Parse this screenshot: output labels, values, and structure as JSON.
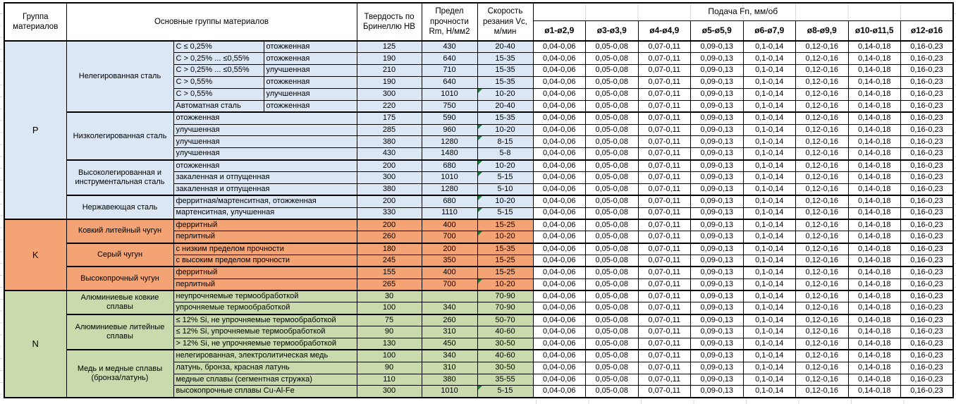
{
  "table": {
    "header": {
      "col_group": "Группа материалов",
      "col_main_groups": "Основные группы материалов",
      "col_hardness": "Твердость по Бринеллю НВ",
      "col_strength": "Предел прочности Rm, Н/мм2",
      "col_speed": "Скорость резания Vc, м/мин",
      "feed_title": "Подача Fn, мм/об",
      "feed_columns": [
        "ø1-ø2,9",
        "ø3-ø3,9",
        "ø4-ø4,9",
        "ø5-ø5,9",
        "ø6-ø7,9",
        "ø8-ø9,9",
        "ø10-ø11,5",
        "ø12-ø16"
      ]
    },
    "feed_values_per_row_identical": [
      "0,04-0,06",
      "0,05-0,08",
      "0,07-0,11",
      "0,09-0,13",
      "0,1-0,14",
      "0,12-0,16",
      "0,14-0,18",
      "0,16-0,23"
    ],
    "note_marker_color": "#1E7B3C",
    "groups": [
      {
        "code": "P",
        "color": "#DBE7F4",
        "subgroups": [
          {
            "name": "Нелегированная сталь",
            "rows": [
              {
                "c1": "C ≤ 0,25%",
                "c2": "отожженная",
                "hb": "125",
                "rm": "430",
                "vc": "20-40",
                "note": false
              },
              {
                "c1": "C > 0,25% ... ≤0,55%",
                "c2": "отожженная",
                "hb": "190",
                "rm": "640",
                "vc": "15-35",
                "note": false
              },
              {
                "c1": "C > 0,25% ... ≤0,55%",
                "c2": "улучшенная",
                "hb": "210",
                "rm": "710",
                "vc": "15-35",
                "note": false
              },
              {
                "c1": "C > 0,55%",
                "c2": "отожженная",
                "hb": "190",
                "rm": "640",
                "vc": "15-35",
                "note": false
              },
              {
                "c1": "C > 0,55%",
                "c2": "улучшенная",
                "hb": "300",
                "rm": "1010",
                "vc": "10-20",
                "note": true
              },
              {
                "c1": "Автоматная сталь",
                "c2": "отожженная",
                "hb": "220",
                "rm": "750",
                "vc": "20-40",
                "note": false
              }
            ]
          },
          {
            "name": "Низколегированная сталь",
            "rows": [
              {
                "desc": "отожженная",
                "hb": "175",
                "rm": "590",
                "vc": "15-35",
                "note": false
              },
              {
                "desc": "улучшенная",
                "hb": "285",
                "rm": "960",
                "vc": "10-20",
                "note": true
              },
              {
                "desc": "улучшенная",
                "hb": "380",
                "rm": "1280",
                "vc": "8-15",
                "note": true
              },
              {
                "desc": "улучшенная",
                "hb": "430",
                "rm": "1480",
                "vc": "5-8",
                "note": false
              }
            ]
          },
          {
            "name": "Высоколегированная и инструментальная сталь",
            "rows": [
              {
                "desc": "отожженная",
                "hb": "200",
                "rm": "680",
                "vc": "10-20",
                "note": true
              },
              {
                "desc": "закаленная и отпущенная",
                "hb": "300",
                "rm": "1010",
                "vc": "5-15",
                "note": true
              },
              {
                "desc": "закаленная и отпущенная",
                "hb": "380",
                "rm": "1280",
                "vc": "5-10",
                "note": false
              }
            ]
          },
          {
            "name": "Нержавеющая сталь",
            "rows": [
              {
                "desc": "ферритная/мартенситная, отожженная",
                "hb": "200",
                "rm": "680",
                "vc": "10-20",
                "note": true
              },
              {
                "desc": "мартенситная, улучшенная",
                "hb": "330",
                "rm": "1110",
                "vc": "5-15",
                "note": true
              }
            ]
          }
        ]
      },
      {
        "code": "K",
        "color": "#F4A474",
        "subgroups": [
          {
            "name": "Ковкий литейный чугун",
            "rows": [
              {
                "desc": "ферритный",
                "hb": "200",
                "rm": "400",
                "vc": "15-25",
                "note": false
              },
              {
                "desc": "перлитный",
                "hb": "260",
                "rm": "700",
                "vc": "10-20",
                "note": true
              }
            ]
          },
          {
            "name": "Серый чугун",
            "rows": [
              {
                "desc": "с низким пределом прочности",
                "hb": "180",
                "rm": "200",
                "vc": "15-35",
                "note": false
              },
              {
                "desc": "с высоким пределом прочности",
                "hb": "245",
                "rm": "350",
                "vc": "15-25",
                "note": false
              }
            ]
          },
          {
            "name": "Высокопрочный чугун",
            "rows": [
              {
                "desc": "ферритный",
                "hb": "155",
                "rm": "400",
                "vc": "15-25",
                "note": false
              },
              {
                "desc": "перлитный",
                "hb": "265",
                "rm": "700",
                "vc": "10-20",
                "note": true
              }
            ]
          }
        ]
      },
      {
        "code": "N",
        "color": "#C9DBAC",
        "subgroups": [
          {
            "name": "Алюминиевые ковкие сплавы",
            "rows": [
              {
                "desc": "неупрочняемые термообработкой",
                "hb": "30",
                "rm": "",
                "vc": "70-90",
                "note": false
              },
              {
                "desc": "упрочняемые термообработкой",
                "hb": "100",
                "rm": "340",
                "vc": "70-90",
                "note": false
              }
            ]
          },
          {
            "name": "Алюминиевые литейные сплавы",
            "rows": [
              {
                "desc": "≤ 12% Si, не упрочняемые термообработкой",
                "hb": "75",
                "rm": "260",
                "vc": "50-70",
                "note": false
              },
              {
                "desc": "≤ 12% Si, упрочняемые термообработкой",
                "hb": "90",
                "rm": "310",
                "vc": "40-60",
                "note": false
              },
              {
                "desc": "> 12% Si, не упрочняемые термообработкой",
                "hb": "130",
                "rm": "450",
                "vc": "30-50",
                "note": false
              }
            ]
          },
          {
            "name": "Медь и медные сплавы (бронза/латунь)",
            "rows": [
              {
                "desc": "нелегированная, электролитическая медь",
                "hb": "100",
                "rm": "340",
                "vc": "40-60",
                "note": false
              },
              {
                "desc": "латунь, бронза, красная латунь",
                "hb": "90",
                "rm": "310",
                "vc": "30-50",
                "note": false
              },
              {
                "desc": "медные сплавы (сегментная стружка)",
                "hb": "110",
                "rm": "380",
                "vc": "35-55",
                "note": false
              },
              {
                "desc": "высокопрочные сплавы Cu-Al-Fe",
                "hb": "300",
                "rm": "1010",
                "vc": "5-15",
                "note": true
              }
            ]
          }
        ]
      }
    ]
  }
}
